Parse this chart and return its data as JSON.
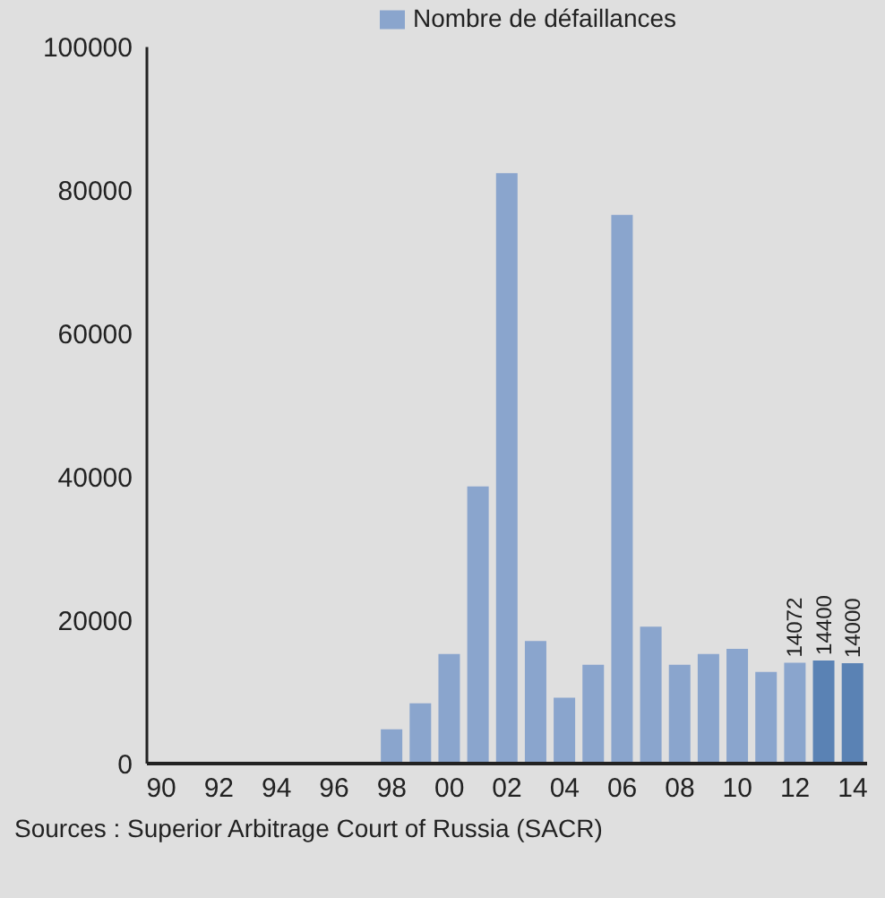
{
  "chart_data": {
    "type": "bar",
    "categories": [
      "90",
      null,
      "92",
      null,
      "94",
      null,
      "96",
      null,
      "98",
      null,
      "00",
      null,
      "02",
      null,
      "04",
      null,
      "06",
      null,
      "08",
      null,
      "10",
      null,
      "12",
      null,
      "14"
    ],
    "series": [
      {
        "name": "Nombre de défaillances",
        "color": "#8aa5cd",
        "colors": [
          "#8aa5cd",
          "#8aa5cd",
          "#8aa5cd",
          "#8aa5cd",
          "#8aa5cd",
          "#8aa5cd",
          "#8aa5cd",
          "#8aa5cd",
          "#8aa5cd",
          "#8aa5cd",
          "#8aa5cd",
          "#8aa5cd",
          "#8aa5cd",
          "#8aa5cd",
          "#8aa5cd",
          "#8aa5cd",
          "#8aa5cd",
          "#8aa5cd",
          "#8aa5cd",
          "#8aa5cd",
          "#8aa5cd",
          "#8aa5cd",
          "#8aa5cd",
          "#5a82b4",
          "#5a82b4"
        ],
        "values": [
          0,
          0,
          0,
          0,
          0,
          0,
          0,
          0,
          4800,
          8400,
          15300,
          38700,
          82400,
          17100,
          9200,
          13800,
          76600,
          19100,
          13800,
          15300,
          16000,
          12800,
          14072,
          14400,
          14000
        ],
        "value_labels": [
          null,
          null,
          null,
          null,
          null,
          null,
          null,
          null,
          null,
          null,
          null,
          null,
          null,
          null,
          null,
          null,
          null,
          null,
          null,
          null,
          null,
          null,
          "14072",
          "14400",
          "14000"
        ]
      }
    ],
    "ylim": [
      0,
      100000
    ],
    "yticks": [
      0,
      20000,
      40000,
      60000,
      80000,
      100000
    ],
    "grid": false,
    "legend": "top",
    "annotations": [
      "Sources : Superior Arbitrage Court of Russia (SACR)"
    ]
  }
}
